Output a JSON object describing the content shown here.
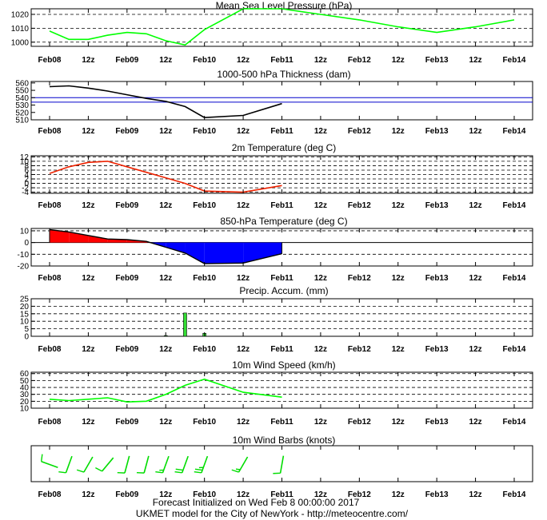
{
  "x_categories": [
    "Feb08",
    "12z",
    "Feb09",
    "12z",
    "Feb10",
    "12z",
    "Feb11",
    "12z",
    "Feb12",
    "12z",
    "Feb13",
    "12z",
    "Feb14"
  ],
  "footer": {
    "line1": "Forecast Initialized on Wed Feb  8 00:00:00 2017",
    "line2": "UKMET model for the City of NewYork - http://meteocentre.com/"
  },
  "chart_data": [
    {
      "id": "mslp",
      "type": "line",
      "title": "Mean Sea Level Pressure (hPa)",
      "yticks": [
        1000,
        1010,
        1020
      ],
      "ylim": [
        997,
        1024
      ],
      "dashed_grid": [
        1000,
        1010,
        1020
      ],
      "color": "#00ff00",
      "x": [
        0,
        0.5,
        1,
        1.5,
        2,
        2.5,
        3,
        3.5,
        4,
        5,
        6,
        7,
        8,
        9,
        10,
        11,
        12
      ],
      "y": [
        1008,
        1002,
        1002,
        1005,
        1007,
        1006,
        1001,
        998,
        1009,
        1024,
        1024,
        1020,
        1016,
        1011,
        1007,
        1011,
        1016
      ]
    },
    {
      "id": "thickness",
      "type": "line",
      "title": "1000-500 hPa Thickness (dam)",
      "yticks": [
        510,
        520,
        530,
        540,
        550,
        560
      ],
      "ylim": [
        510,
        562
      ],
      "dashed_grid": [],
      "ref_lines": [
        534,
        540
      ],
      "ref_color": "#0000cc",
      "color": "#000000",
      "x": [
        0,
        0.5,
        1,
        1.5,
        2,
        2.5,
        3,
        3.5,
        4,
        5,
        6
      ],
      "y": [
        555,
        556,
        553,
        549,
        544,
        539,
        535,
        528,
        513,
        516,
        532
      ]
    },
    {
      "id": "t2m",
      "type": "line",
      "title": "2m Temperature (deg C)",
      "yticks": [
        -4,
        -2,
        0,
        2,
        4,
        6,
        8,
        10,
        12
      ],
      "ylim": [
        -4.5,
        12.5
      ],
      "dashed_grid": [
        -4,
        -2,
        0,
        2,
        4,
        6,
        8,
        10,
        12
      ],
      "color": "#ee2200",
      "x": [
        0,
        0.5,
        1,
        1.5,
        2,
        2.5,
        3,
        3.5,
        4,
        5,
        6
      ],
      "y": [
        4.5,
        7.5,
        9.5,
        10,
        7.5,
        5,
        2.5,
        0,
        -3.5,
        -4,
        -1
      ]
    },
    {
      "id": "t850",
      "type": "area",
      "title": "850-hPa Temperature (deg C)",
      "yticks": [
        -20,
        -10,
        0,
        10
      ],
      "ylim": [
        -20,
        12
      ],
      "dashed_grid": [
        -20,
        -10,
        10
      ],
      "zero_line": 0,
      "pos_color": "#ff0000",
      "neg_color": "#0000ff",
      "x": [
        0,
        0.5,
        1,
        1.5,
        2,
        2.5,
        3,
        3.5,
        4,
        5,
        6
      ],
      "y": [
        11,
        9,
        6,
        3,
        2.5,
        1,
        -4,
        -9,
        -18,
        -17.5,
        -9.5
      ]
    },
    {
      "id": "precip",
      "type": "bar",
      "title": "Precip. Accum. (mm)",
      "yticks": [
        0,
        5,
        10,
        15,
        20,
        25
      ],
      "ylim": [
        0,
        25
      ],
      "dashed_grid": [
        5,
        10,
        15,
        20,
        25
      ],
      "color": "#33dd33",
      "x": [
        3,
        3.5,
        4
      ],
      "y": [
        0.5,
        15.5,
        2
      ]
    },
    {
      "id": "wspd",
      "type": "line",
      "title": "10m Wind Speed (km/h)",
      "yticks": [
        10,
        20,
        30,
        40,
        50,
        60
      ],
      "ylim": [
        10,
        62
      ],
      "dashed_grid": [
        20,
        30,
        40,
        50,
        60
      ],
      "color": "#00ff00",
      "x": [
        0,
        0.5,
        1,
        1.5,
        2,
        2.5,
        3,
        3.5,
        4,
        5,
        6
      ],
      "y": [
        23,
        21,
        23,
        25,
        19,
        20,
        30,
        43,
        52,
        33,
        26
      ]
    },
    {
      "id": "barbs",
      "type": "wind-barbs",
      "title": "10m Wind Barbs  (knots)",
      "color": "#00dd00",
      "x": [
        0,
        0.5,
        1,
        1.5,
        2,
        2.5,
        3,
        3.5,
        4,
        5,
        6
      ],
      "dir_deg": [
        290,
        200,
        210,
        220,
        195,
        195,
        200,
        200,
        200,
        210,
        190
      ],
      "speed_kt": [
        12,
        10,
        12,
        14,
        10,
        11,
        16,
        24,
        28,
        18,
        14
      ]
    }
  ]
}
